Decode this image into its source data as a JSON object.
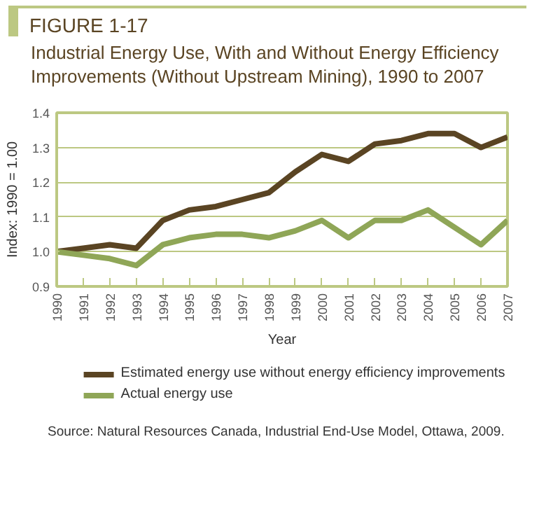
{
  "chart_data": {
    "type": "line",
    "title": "FIGURE 1-17",
    "subtitle": "Industrial Energy Use, With and Without Energy Efficiency Improvements (Without Upstream Mining), 1990 to 2007",
    "xlabel": "Year",
    "ylabel": "Index: 1990 = 1.00",
    "x": [
      1990,
      1991,
      1992,
      1993,
      1994,
      1995,
      1996,
      1997,
      1998,
      1999,
      2000,
      2001,
      2002,
      2003,
      2004,
      2005,
      2006,
      2007
    ],
    "xlim": [
      1990,
      2007
    ],
    "xticks": [
      1990,
      1991,
      1992,
      1993,
      1994,
      1995,
      1996,
      1997,
      1998,
      1999,
      2000,
      2001,
      2002,
      2003,
      2004,
      2005,
      2006,
      2007
    ],
    "ylim": [
      0.9,
      1.4
    ],
    "yticks": [
      {
        "value": 0.9,
        "label": "0.9"
      },
      {
        "value": 1.0,
        "label": "1.0"
      },
      {
        "value": 1.1,
        "label": "1.1"
      },
      {
        "value": 1.2,
        "label": "1.2"
      },
      {
        "value": 1.3,
        "label": "1.3"
      },
      {
        "value": 1.4,
        "label": "1.4"
      }
    ],
    "series": [
      {
        "name": "Estimated energy use without energy efficiency improvements",
        "color": "#5a4423",
        "values": [
          1.0,
          1.01,
          1.02,
          1.01,
          1.09,
          1.12,
          1.13,
          1.15,
          1.17,
          1.23,
          1.28,
          1.26,
          1.31,
          1.32,
          1.34,
          1.34,
          1.3,
          1.33
        ]
      },
      {
        "name": "Actual energy use",
        "color": "#8fa657",
        "values": [
          1.0,
          0.99,
          0.98,
          0.96,
          1.02,
          1.04,
          1.05,
          1.05,
          1.04,
          1.06,
          1.09,
          1.04,
          1.09,
          1.09,
          1.12,
          1.07,
          1.02,
          1.09
        ]
      }
    ],
    "grid": "y",
    "legend": "bottom",
    "marker": "none",
    "line_style": "solid",
    "annotations": [
      "Source: Natural Resources Canada, Industrial End-Use Model, Ottawa, 2009."
    ]
  }
}
